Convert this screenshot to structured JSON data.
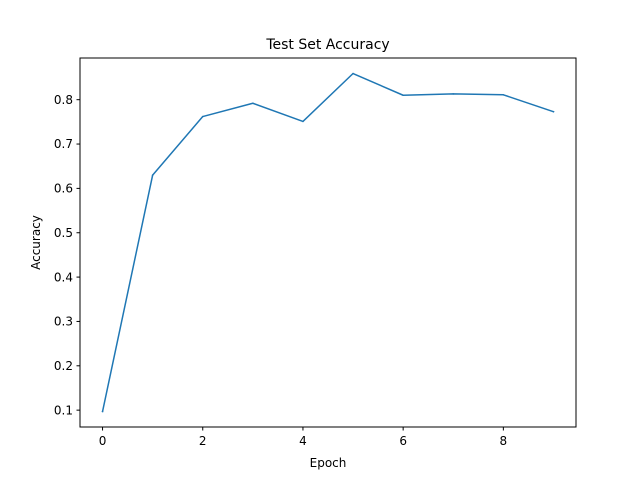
{
  "chart_data": {
    "type": "line",
    "title": "Test Set Accuracy",
    "xlabel": "Epoch",
    "ylabel": "Accuracy",
    "xlim": [
      -0.45,
      9.45
    ],
    "ylim": [
      0.062,
      0.894
    ],
    "xticks": [
      0,
      2,
      4,
      6,
      8
    ],
    "xtick_labels": [
      "0",
      "2",
      "4",
      "6",
      "8"
    ],
    "yticks": [
      0.1,
      0.2,
      0.3,
      0.4,
      0.5,
      0.6,
      0.7,
      0.8
    ],
    "ytick_labels": [
      "0.1",
      "0.2",
      "0.3",
      "0.4",
      "0.5",
      "0.6",
      "0.7",
      "0.8"
    ],
    "grid": false,
    "series": [
      {
        "color": "#1f77b4",
        "x": [
          0,
          1,
          2,
          3,
          4,
          5,
          6,
          7,
          8,
          9
        ],
        "y": [
          0.097,
          0.63,
          0.762,
          0.792,
          0.751,
          0.859,
          0.81,
          0.813,
          0.811,
          0.773
        ]
      }
    ]
  }
}
